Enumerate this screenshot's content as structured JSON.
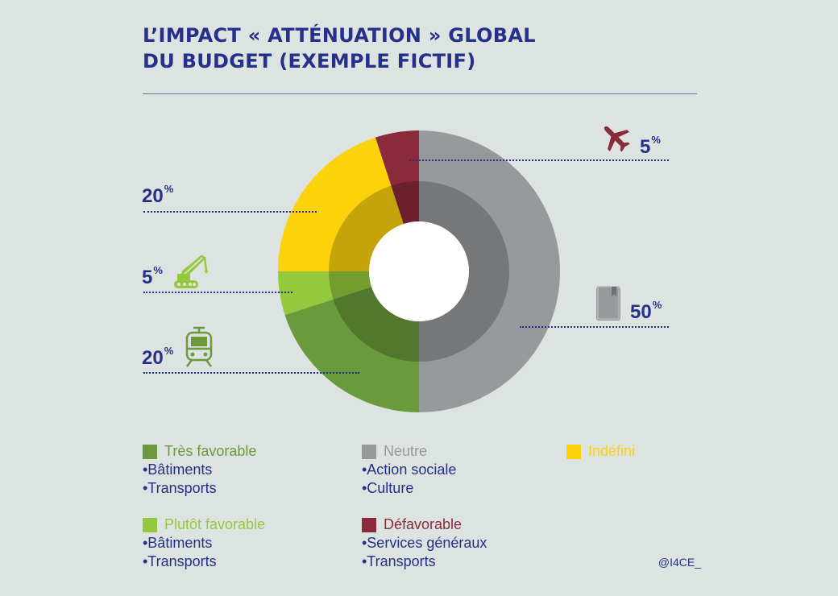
{
  "title": {
    "line1": "L’IMPACT « ATTÉNUATION » GLOBAL",
    "line2": "DU BUDGET (EXEMPLE FICTIF)"
  },
  "chart_data": {
    "type": "pie",
    "title": "L’IMPACT « ATTÉNUATION » GLOBAL DU BUDGET (EXEMPLE FICTIF)",
    "donut": true,
    "percent_suffix": "%",
    "slices": [
      {
        "category": "Neutre",
        "value": 50,
        "label": "50",
        "color": "#98999c",
        "icon": "book-icon"
      },
      {
        "category": "Très favorable",
        "value": 20,
        "label": "20",
        "color": "#6a9a3b",
        "icon": "tram-icon"
      },
      {
        "category": "Plutôt favorable",
        "value": 5,
        "label": "5",
        "color": "#95c93d",
        "icon": "crane-icon"
      },
      {
        "category": "Indéfini",
        "value": 20,
        "label": "20",
        "color": "#fcd20c",
        "icon": "none"
      },
      {
        "category": "Défavorable",
        "value": 5,
        "label": "5",
        "color": "#8b2a3b",
        "icon": "airplane-icon"
      }
    ]
  },
  "legend": {
    "tres_favorable": {
      "label": "Très favorable",
      "color": "#6a9a3b",
      "items": [
        "•Bâtiments",
        "•Transports"
      ]
    },
    "neutre": {
      "label": "Neutre",
      "color": "#98999c",
      "items": [
        "•Action sociale",
        "•Culture"
      ]
    },
    "indefini": {
      "label": "Indéfini",
      "color": "#fcd20c",
      "items": []
    },
    "plutot_favorable": {
      "label": "Plutôt favorable",
      "color": "#95c93d",
      "items": [
        "•Bâtiments",
        "•Transports"
      ]
    },
    "defavorable": {
      "label": "Défavorable",
      "color": "#8b2a3b",
      "items": [
        "•Services généraux",
        "•Transports"
      ]
    }
  },
  "credit": "@I4CE_"
}
